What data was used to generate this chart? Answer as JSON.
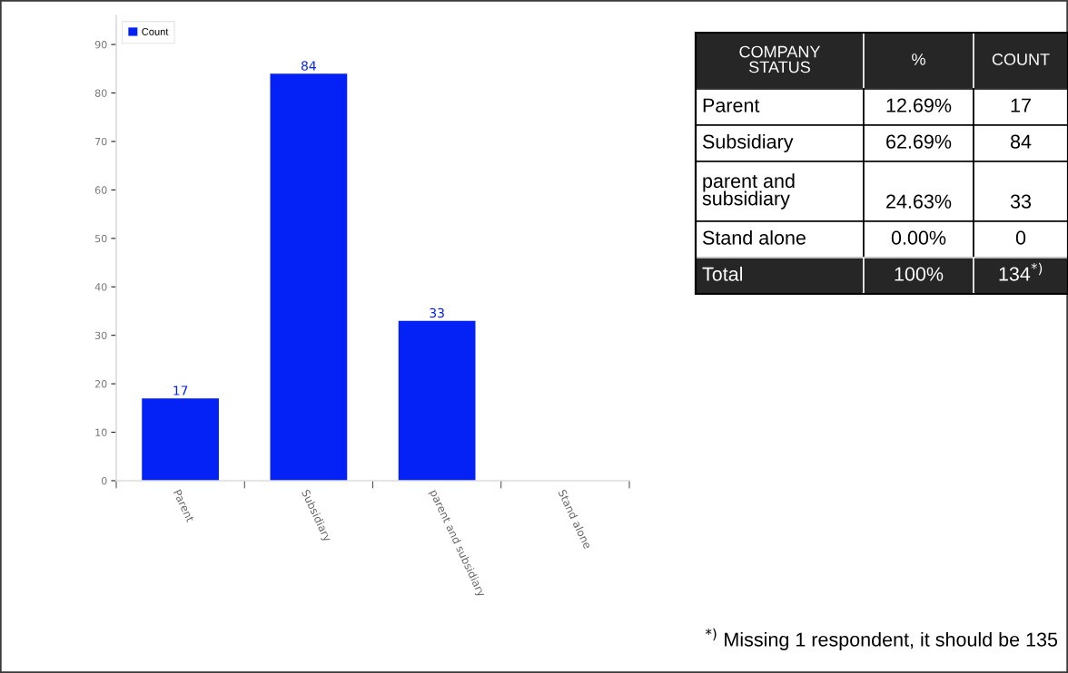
{
  "chart_data": [
    {
      "type": "bar",
      "categories": [
        "Parent",
        "Subsidiary",
        "parent and subsidiary",
        "Stand alone"
      ],
      "series": [
        {
          "name": "Count",
          "color": "#0422f5",
          "values": [
            17,
            84,
            33,
            0
          ],
          "value_labels": [
            "17",
            "84",
            "33",
            null
          ]
        }
      ],
      "ylim": [
        0,
        96
      ],
      "yticks": [
        0,
        10,
        20,
        30,
        40,
        50,
        60,
        70,
        80,
        90
      ],
      "grid": false,
      "legend": "top left"
    },
    {
      "type": "other",
      "ylabel": "COMPANY\nSTATUS",
      "categories": [
        "Parent",
        "Subsidiary",
        "parent and\nsubsidiary",
        "Stand alone",
        "Total"
      ],
      "series": [
        {
          "name": "%",
          "colors": [
            "#ffffff",
            "#ffffff",
            "#ffffff",
            "#ffffff",
            "#262626"
          ],
          "values": [
            12.69,
            62.69,
            24.63,
            0.0,
            100
          ],
          "value_labels": [
            "12.69%",
            "62.69%",
            "24.63%",
            "0.00%",
            "100%"
          ]
        },
        {
          "name": "COUNT",
          "colors": [
            "#ffffff",
            "#ffffff",
            "#ffffff",
            "#ffffff",
            "#262626"
          ],
          "values": [
            17,
            84,
            33,
            0,
            134
          ],
          "value_labels": [
            "17",
            "84",
            "33",
            "0",
            "134$^{*)}$"
          ]
        }
      ],
      "annotations": [
        "$^{*)}$ Missing 1 respondent, it should be 135"
      ]
    }
  ]
}
